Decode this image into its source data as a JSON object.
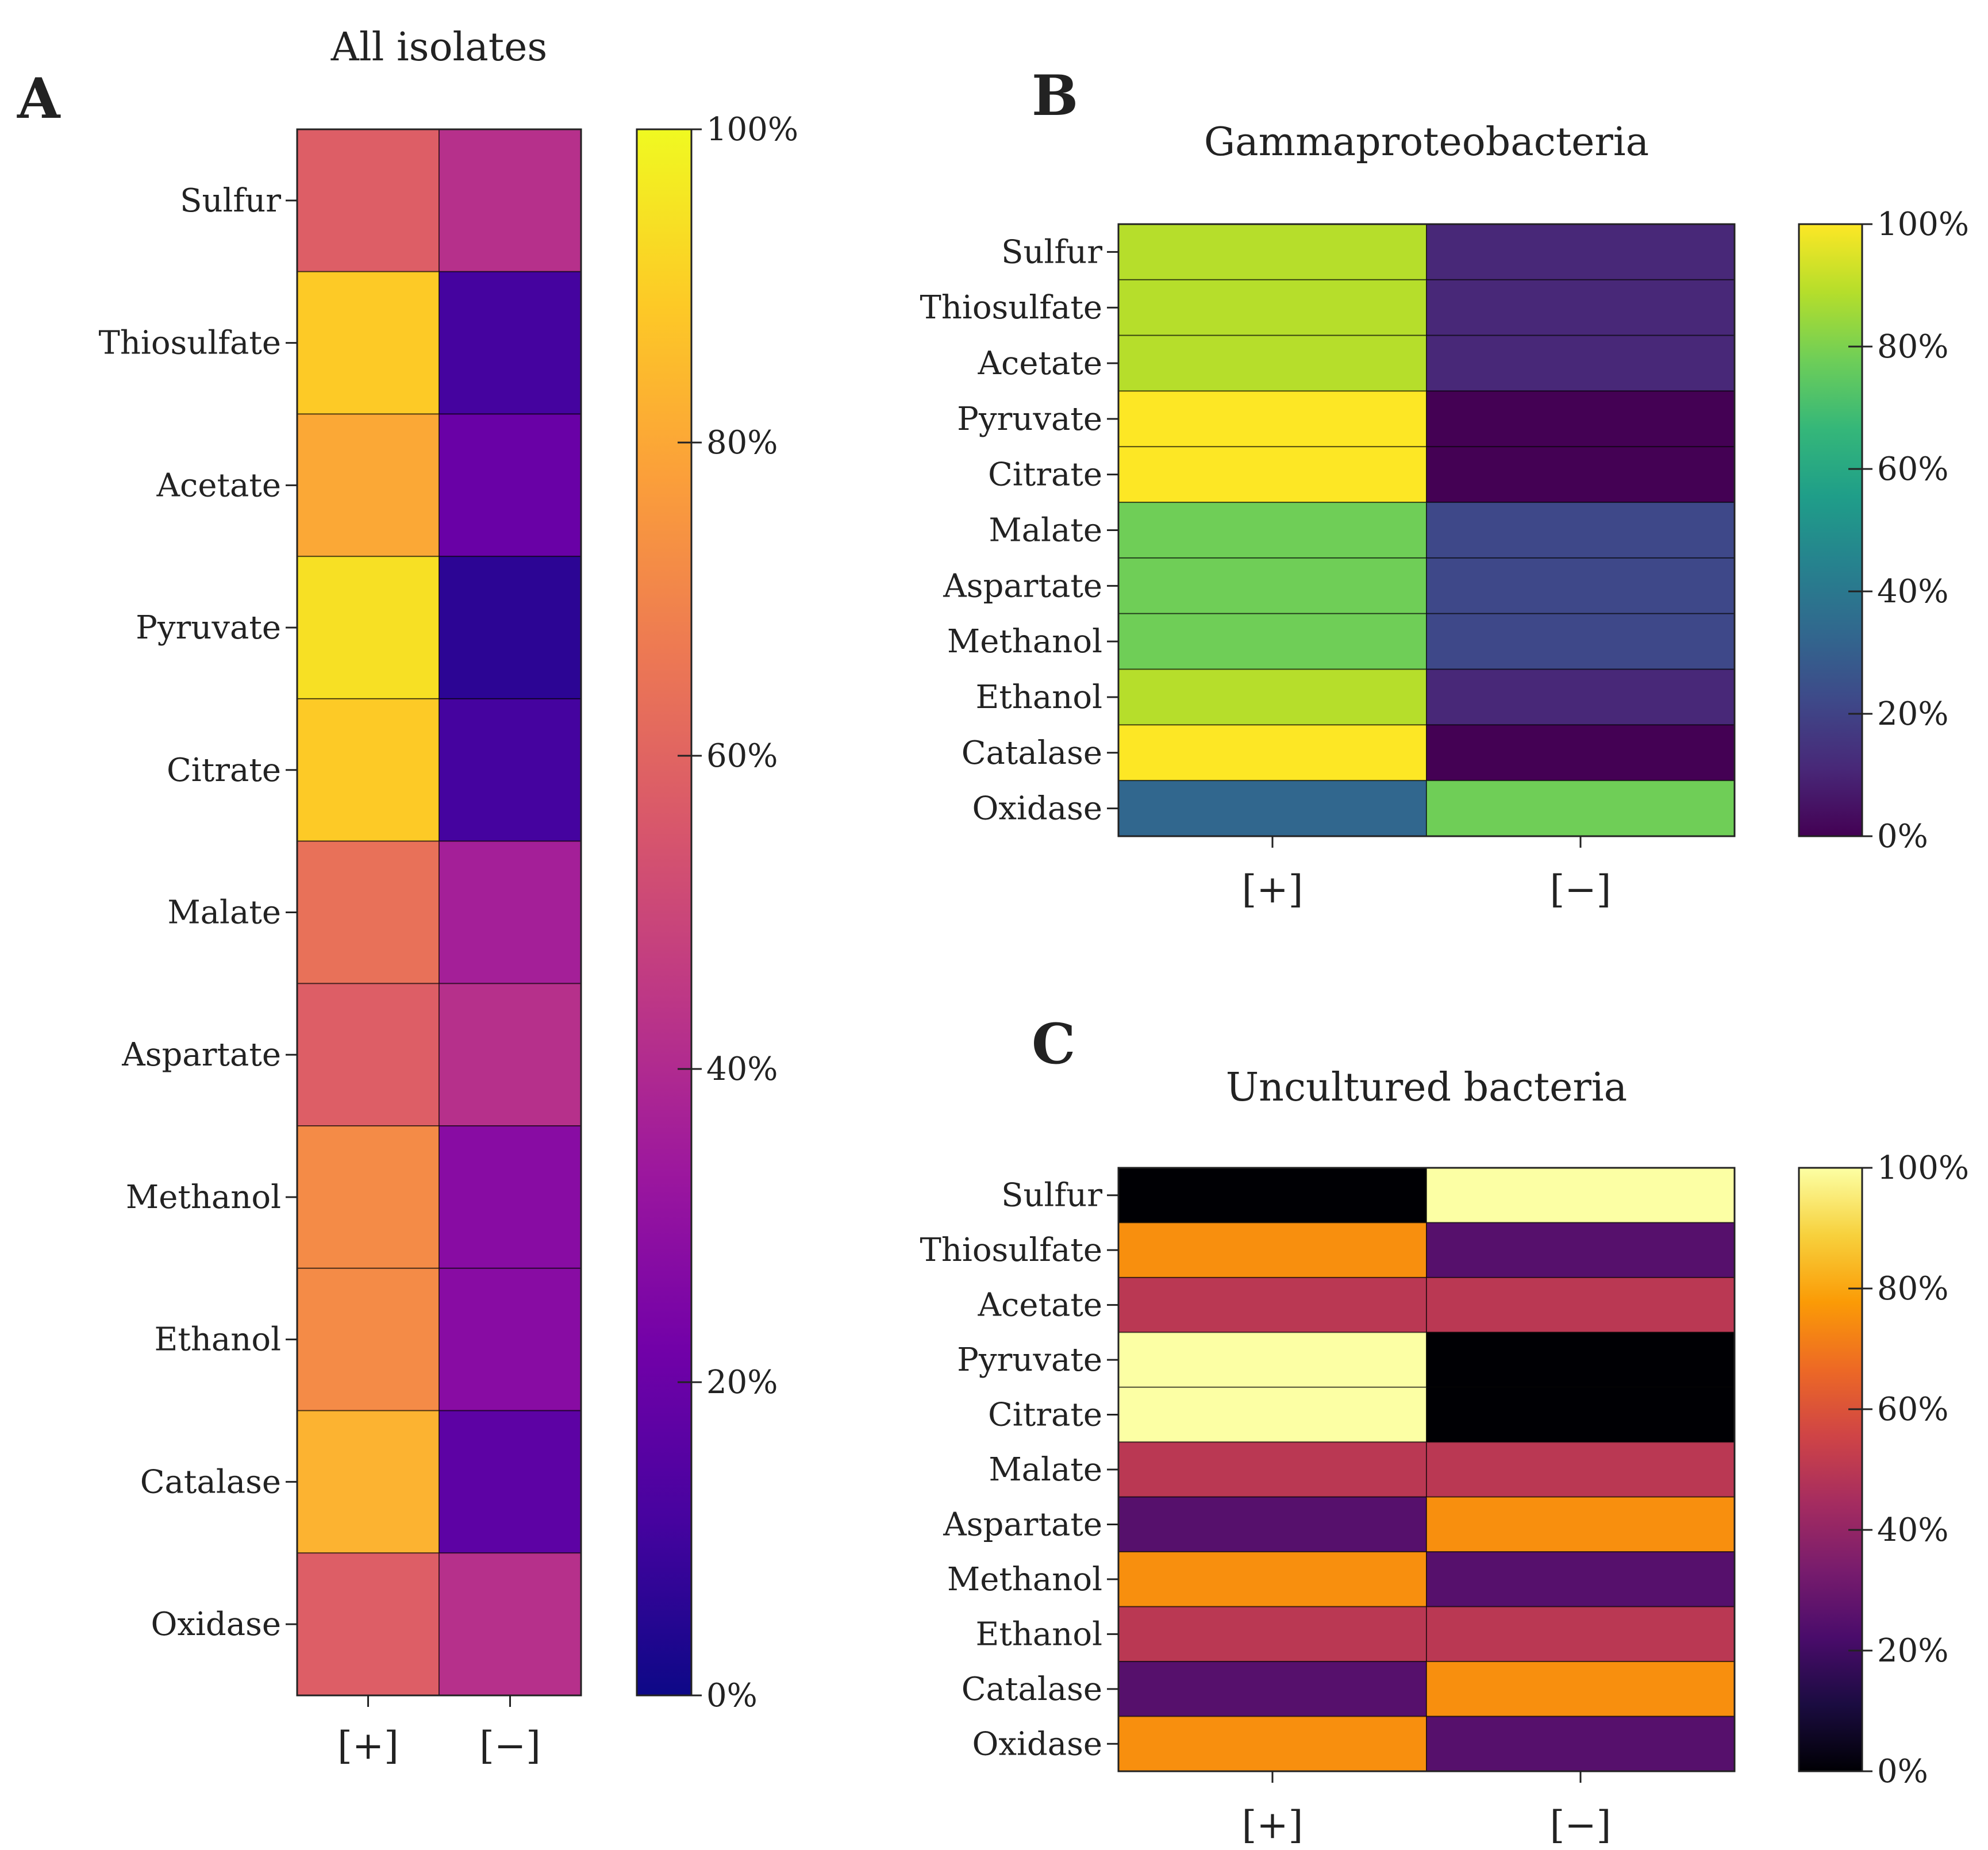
{
  "chart_data": [
    {
      "type": "heatmap",
      "panel": "A",
      "title": "All isolates",
      "rows": [
        "Sulfur",
        "Thiosulfate",
        "Acetate",
        "Pyruvate",
        "Citrate",
        "Malate",
        "Aspartate",
        "Methanol",
        "Ethanol",
        "Catalase",
        "Oxidase"
      ],
      "columns": [
        "[+]",
        "[−]"
      ],
      "values": [
        [
          58,
          42
        ],
        [
          89,
          11
        ],
        [
          80,
          20
        ],
        [
          94,
          6
        ],
        [
          89,
          11
        ],
        [
          64,
          36
        ],
        [
          58,
          42
        ],
        [
          72,
          28
        ],
        [
          72,
          28
        ],
        [
          83,
          17
        ],
        [
          58,
          42
        ]
      ],
      "colormap": "plasma",
      "colorbar": {
        "range": [
          0,
          100
        ],
        "tick_labels": [
          "0%",
          "20%",
          "40%",
          "60%",
          "80%",
          "100%"
        ]
      }
    },
    {
      "type": "heatmap",
      "panel": "B",
      "title": "Gammaproteobacteria",
      "rows": [
        "Sulfur",
        "Thiosulfate",
        "Acetate",
        "Pyruvate",
        "Citrate",
        "Malate",
        "Aspartate",
        "Methanol",
        "Ethanol",
        "Catalase",
        "Oxidase"
      ],
      "columns": [
        "[+]",
        "[−]"
      ],
      "values": [
        [
          89,
          11
        ],
        [
          89,
          11
        ],
        [
          89,
          11
        ],
        [
          100,
          0
        ],
        [
          100,
          0
        ],
        [
          78,
          22
        ],
        [
          78,
          22
        ],
        [
          78,
          22
        ],
        [
          89,
          11
        ],
        [
          100,
          0
        ],
        [
          33,
          78
        ]
      ],
      "colormap": "viridis",
      "colorbar": {
        "range": [
          0,
          100
        ],
        "tick_labels": [
          "0%",
          "20%",
          "40%",
          "60%",
          "80%",
          "100%"
        ]
      }
    },
    {
      "type": "heatmap",
      "panel": "C",
      "title": "Uncultured bacteria",
      "rows": [
        "Sulfur",
        "Thiosulfate",
        "Acetate",
        "Pyruvate",
        "Citrate",
        "Malate",
        "Aspartate",
        "Methanol",
        "Ethanol",
        "Catalase",
        "Oxidase"
      ],
      "columns": [
        "[+]",
        "[−]"
      ],
      "values": [
        [
          0,
          100
        ],
        [
          75,
          25
        ],
        [
          50,
          50
        ],
        [
          100,
          0
        ],
        [
          100,
          0
        ],
        [
          50,
          50
        ],
        [
          25,
          75
        ],
        [
          75,
          25
        ],
        [
          50,
          50
        ],
        [
          25,
          75
        ],
        [
          75,
          25
        ]
      ],
      "colormap": "inferno",
      "colorbar": {
        "range": [
          0,
          100
        ],
        "tick_labels": [
          "0%",
          "20%",
          "40%",
          "60%",
          "80%",
          "100%"
        ]
      }
    }
  ],
  "colormaps": {
    "plasma": [
      "#0d0887",
      "#46039f",
      "#7201a8",
      "#9c179e",
      "#bd3786",
      "#d8576b",
      "#ed7953",
      "#fb9f3a",
      "#fdca26",
      "#f0f921"
    ],
    "viridis": [
      "#440154",
      "#482878",
      "#3e4989",
      "#31688e",
      "#26828e",
      "#1f9e89",
      "#35b779",
      "#6ece58",
      "#b5de2b",
      "#fde725"
    ],
    "inferno": [
      "#000004",
      "#1b0c41",
      "#4a0c6b",
      "#781c6d",
      "#a52c60",
      "#cf4446",
      "#ed6925",
      "#fb9b06",
      "#f7d13d",
      "#fcffa4"
    ]
  }
}
